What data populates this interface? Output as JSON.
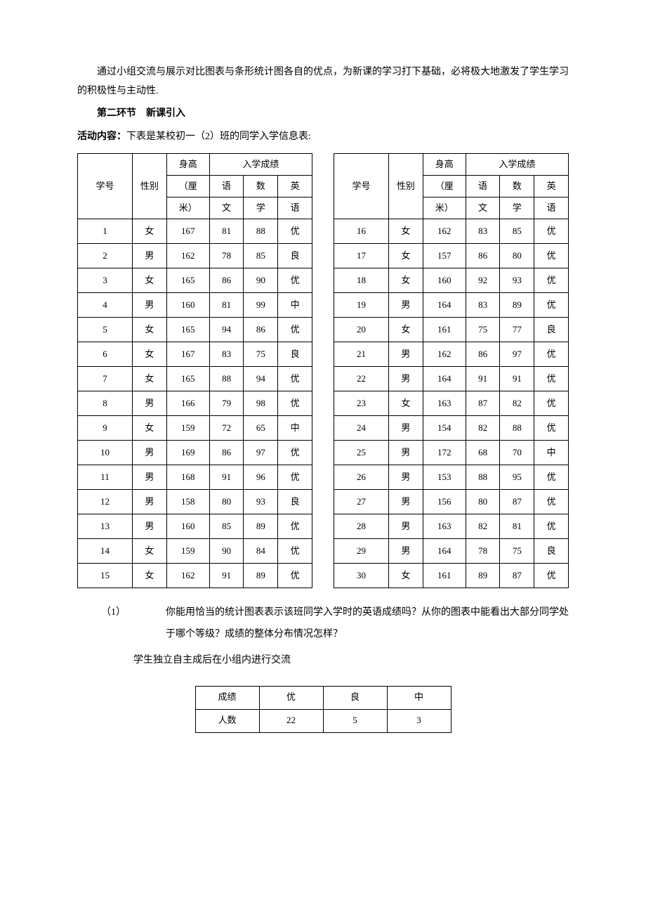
{
  "intro_para": "通过小组交流与展示对比图表与条形统计图各自的优点，为新课的学习打下基础，必将极大地激发了学生学习的积极性与主动性.",
  "section_title": "第二环节　新课引入",
  "activity_label": "活动内容：",
  "activity_text": "下表是某校初一（2）班的同学入学信息表:",
  "headers": {
    "id": "学号",
    "sex": "性别",
    "height_l1": "身高",
    "height_l2": "（厘",
    "height_l3": "米）",
    "score_group": "入学成绩",
    "chinese_l1": "语",
    "chinese_l2": "文",
    "math_l1": "数",
    "math_l2": "学",
    "english_l1": "英",
    "english_l2": "语"
  },
  "left_rows": [
    {
      "id": "1",
      "sex": "女",
      "h": "167",
      "c": "81",
      "m": "88",
      "e": "优"
    },
    {
      "id": "2",
      "sex": "男",
      "h": "162",
      "c": "78",
      "m": "85",
      "e": "良"
    },
    {
      "id": "3",
      "sex": "女",
      "h": "165",
      "c": "86",
      "m": "90",
      "e": "优"
    },
    {
      "id": "4",
      "sex": "男",
      "h": "160",
      "c": "81",
      "m": "99",
      "e": "中"
    },
    {
      "id": "5",
      "sex": "女",
      "h": "165",
      "c": "94",
      "m": "86",
      "e": "优"
    },
    {
      "id": "6",
      "sex": "女",
      "h": "167",
      "c": "83",
      "m": "75",
      "e": "良"
    },
    {
      "id": "7",
      "sex": "女",
      "h": "165",
      "c": "88",
      "m": "94",
      "e": "优"
    },
    {
      "id": "8",
      "sex": "男",
      "h": "166",
      "c": "79",
      "m": "98",
      "e": "优"
    },
    {
      "id": "9",
      "sex": "女",
      "h": "159",
      "c": "72",
      "m": "65",
      "e": "中"
    },
    {
      "id": "10",
      "sex": "男",
      "h": "169",
      "c": "86",
      "m": "97",
      "e": "优"
    },
    {
      "id": "11",
      "sex": "男",
      "h": "168",
      "c": "91",
      "m": "96",
      "e": "优"
    },
    {
      "id": "12",
      "sex": "男",
      "h": "158",
      "c": "80",
      "m": "93",
      "e": "良"
    },
    {
      "id": "13",
      "sex": "男",
      "h": "160",
      "c": "85",
      "m": "89",
      "e": "优"
    },
    {
      "id": "14",
      "sex": "女",
      "h": "159",
      "c": "90",
      "m": "84",
      "e": "优"
    },
    {
      "id": "15",
      "sex": "女",
      "h": "162",
      "c": "91",
      "m": "89",
      "e": "优"
    }
  ],
  "right_rows": [
    {
      "id": "16",
      "sex": "女",
      "h": "162",
      "c": "83",
      "m": "85",
      "e": "优"
    },
    {
      "id": "17",
      "sex": "女",
      "h": "157",
      "c": "86",
      "m": "80",
      "e": "优"
    },
    {
      "id": "18",
      "sex": "女",
      "h": "160",
      "c": "92",
      "m": "93",
      "e": "优"
    },
    {
      "id": "19",
      "sex": "男",
      "h": "164",
      "c": "83",
      "m": "89",
      "e": "优"
    },
    {
      "id": "20",
      "sex": "女",
      "h": "161",
      "c": "75",
      "m": "77",
      "e": "良"
    },
    {
      "id": "21",
      "sex": "男",
      "h": "162",
      "c": "86",
      "m": "97",
      "e": "优"
    },
    {
      "id": "22",
      "sex": "男",
      "h": "164",
      "c": "91",
      "m": "91",
      "e": "优"
    },
    {
      "id": "23",
      "sex": "女",
      "h": "163",
      "c": "87",
      "m": "82",
      "e": "优"
    },
    {
      "id": "24",
      "sex": "男",
      "h": "154",
      "c": "82",
      "m": "88",
      "e": "优"
    },
    {
      "id": "25",
      "sex": "男",
      "h": "172",
      "c": "68",
      "m": "70",
      "e": "中"
    },
    {
      "id": "26",
      "sex": "男",
      "h": "153",
      "c": "88",
      "m": "95",
      "e": "优"
    },
    {
      "id": "27",
      "sex": "男",
      "h": "156",
      "c": "80",
      "m": "87",
      "e": "优"
    },
    {
      "id": "28",
      "sex": "男",
      "h": "163",
      "c": "82",
      "m": "81",
      "e": "优"
    },
    {
      "id": "29",
      "sex": "男",
      "h": "164",
      "c": "78",
      "m": "75",
      "e": "良"
    },
    {
      "id": "30",
      "sex": "女",
      "h": "161",
      "c": "89",
      "m": "87",
      "e": "优"
    }
  ],
  "question_num": "（1）",
  "question_text": "你能用恰当的统计图表表示该班同学入学时的英语成绩吗？从你的图表中能看出大部分同学处于哪个等级？成绩的整体分布情况怎样？",
  "question_sub": "学生独立自主成后在小组内进行交流",
  "summary": {
    "labels": [
      "成绩",
      "优",
      "良",
      "中"
    ],
    "values": [
      "人数",
      "22",
      "5",
      "3"
    ]
  },
  "style": {
    "text_color": "#000000",
    "background_color": "#ffffff",
    "border_color": "#000000",
    "body_fontsize": 14,
    "table_fontsize": 13
  }
}
